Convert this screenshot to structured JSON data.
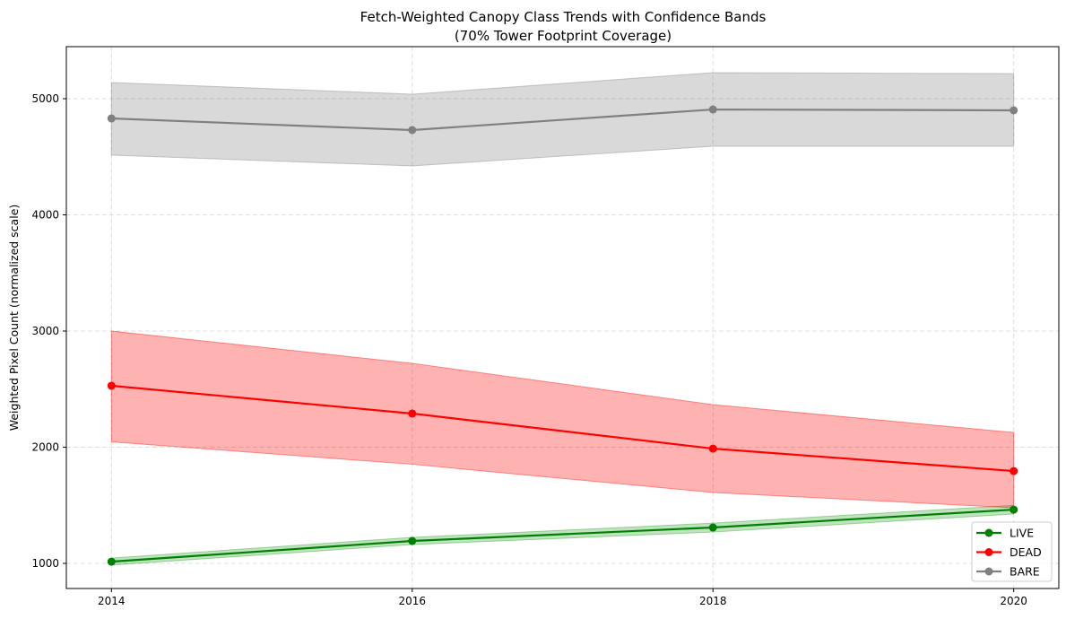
{
  "chart_data": {
    "type": "line",
    "title": "Fetch-Weighted Canopy Class Trends with Confidence Bands",
    "subtitle": "(70% Tower Footprint Coverage)",
    "xlabel": "",
    "ylabel": "Weighted Pixel Count (normalized scale)",
    "x": [
      2014,
      2016,
      2018,
      2020
    ],
    "xticks": [
      "2014",
      "2016",
      "2018",
      "2020"
    ],
    "yticks": [
      "1000",
      "2000",
      "3000",
      "4000",
      "5000"
    ],
    "ytick_values": [
      1000,
      2000,
      3000,
      4000,
      5000
    ],
    "xlim": [
      2013.7,
      2020.3
    ],
    "ylim": [
      784,
      5448
    ],
    "grid": true,
    "legend_position": "lower-right",
    "series": [
      {
        "name": "LIVE",
        "color": "#008000",
        "fill": "#2ca02c",
        "values": [
          1015,
          1193,
          1309,
          1463
        ],
        "lower": [
          985,
          1162,
          1270,
          1425
        ],
        "upper": [
          1046,
          1224,
          1347,
          1500
        ]
      },
      {
        "name": "DEAD",
        "color": "#ff0000",
        "fill": "#ff0000",
        "values": [
          2529,
          2290,
          1988,
          1795
        ],
        "lower": [
          2046,
          1853,
          1610,
          1479
        ],
        "upper": [
          3000,
          2722,
          2367,
          2127
        ]
      },
      {
        "name": "BARE",
        "color": "#808080",
        "fill": "#808080",
        "values": [
          4830,
          4730,
          4907,
          4900
        ],
        "lower": [
          4514,
          4421,
          4591,
          4591
        ],
        "upper": [
          5139,
          5039,
          5224,
          5216
        ]
      }
    ]
  }
}
